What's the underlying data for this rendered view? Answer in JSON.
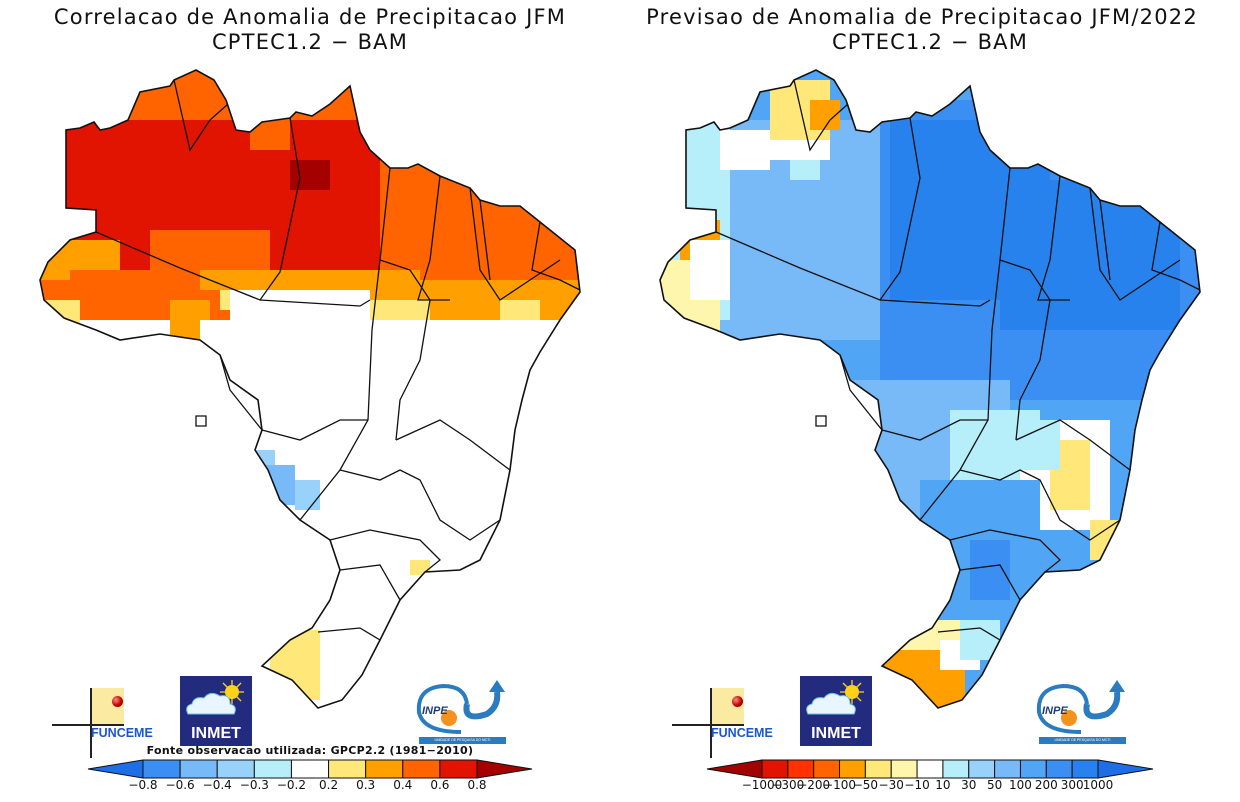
{
  "panels": [
    {
      "id": "correlation",
      "title_line1": "Correlacao de Anomalia de Precipitacao JFM",
      "title_line2": "CPTEC1.2 − BAM",
      "source_note": "Fonte observacao utilizada: GPCP2.2 (1981−2010)",
      "colorbar": {
        "labels": [
          "−0.8",
          "−0.6",
          "−0.4",
          "−0.3",
          "−0.2",
          "0.2",
          "0.3",
          "0.4",
          "0.6",
          "0.8"
        ],
        "colors": [
          "#1e6ee8",
          "#3c8ff2",
          "#78b9f7",
          "#98d2fa",
          "#b6eefa",
          "#ffffff",
          "#ffe77a",
          "#ffa000",
          "#ff6400",
          "#e01400",
          "#a50000"
        ]
      },
      "regions": [
        {
          "name": "amazon-core",
          "category": 9
        },
        {
          "name": "amazon-periphery",
          "category": 8
        },
        {
          "name": "northeast",
          "category": 8
        },
        {
          "name": "transition-belt",
          "category": 7
        },
        {
          "name": "southern-edge-north",
          "category": 6
        },
        {
          "name": "central-south",
          "category": 5
        },
        {
          "name": "ms-west-pocket",
          "category": 3
        },
        {
          "name": "rs-west",
          "category": 6
        },
        {
          "name": "max-cell",
          "category": 10
        }
      ]
    },
    {
      "id": "forecast",
      "title_line1": "Previsao de Anomalia de Precipitacao JFM/2022",
      "title_line2": "CPTEC1.2 − BAM",
      "colorbar": {
        "labels": [
          "−1000",
          "−300",
          "−200",
          "−100",
          "−50",
          "−30",
          "−10",
          "10",
          "30",
          "50",
          "100",
          "200",
          "300",
          "1000"
        ],
        "colors": [
          "#a50000",
          "#e01400",
          "#ff3200",
          "#ff6400",
          "#ffa000",
          "#ffe77a",
          "#fff6ae",
          "#ffffff",
          "#b6eefa",
          "#98d2fa",
          "#78b9f7",
          "#50a5f5",
          "#3c8ff2",
          "#2882ee",
          "#1e6ee8"
        ]
      },
      "regions": [
        {
          "name": "north-core",
          "category": 13
        },
        {
          "name": "northeast",
          "category": 12
        },
        {
          "name": "west-amazon",
          "category": 10
        },
        {
          "name": "far-west-amazon",
          "category": 8
        },
        {
          "name": "roraima",
          "category": 5
        },
        {
          "name": "center-west",
          "category": 10
        },
        {
          "name": "southeast-minas",
          "category": 6
        },
        {
          "name": "south",
          "category": 11
        },
        {
          "name": "rs-southwest",
          "category": 4
        }
      ]
    }
  ],
  "logos": {
    "funceme": "FUNCEME",
    "inmet": "INMET",
    "inpe": "INPE",
    "inpe_band": "UNIDADE DE PESQUISA DO MCTI"
  },
  "icons": [
    "funceme-logo",
    "inmet-logo",
    "inpe-logo"
  ]
}
